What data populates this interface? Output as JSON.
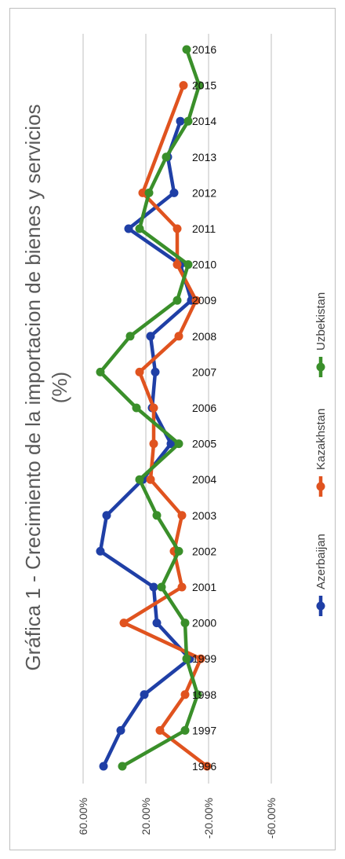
{
  "chart_data": {
    "type": "line",
    "title": "Gráfica 1 - Crecimiento de la importacion de bienes y servicios (%)",
    "title_lines": [
      "Gráfica 1 - Crecimiento de la importacion de bienes y servicios",
      "(%)"
    ],
    "xlabel": "",
    "ylabel": "",
    "ylim": [
      -80,
      80
    ],
    "y_ticks": [
      60,
      20,
      -20,
      -60
    ],
    "y_tick_labels": [
      "60.00%",
      "20.00%",
      "-20.00%",
      "-60.00%"
    ],
    "grid": true,
    "legend_position": "right",
    "categories": [
      "1996",
      "1997",
      "1998",
      "1999",
      "2000",
      "2001",
      "2002",
      "2003",
      "2004",
      "2005",
      "2006",
      "2007",
      "2008",
      "2009",
      "2010",
      "2011",
      "2012",
      "2013",
      "2014",
      "2015",
      "2016"
    ],
    "series": [
      {
        "name": "Azerbaijan",
        "color": "#1f3fa6",
        "values": [
          47,
          36,
          21,
          -8,
          13,
          15,
          49,
          45,
          22,
          4,
          16,
          14,
          17,
          -9,
          -2,
          31,
          2,
          6,
          -2,
          null,
          null
        ]
      },
      {
        "name": "Kazakhstan",
        "color": "#e0531f",
        "values": [
          -19,
          11,
          -5,
          -15,
          34,
          -3,
          2,
          -3,
          17,
          15,
          15,
          24,
          -1,
          -12,
          0,
          0,
          22,
          null,
          null,
          -4,
          null
        ]
      },
      {
        "name": "Uzbekistan",
        "color": "#3a8f2a",
        "values": [
          35,
          -5,
          -13,
          -6,
          -5,
          10,
          -1,
          13,
          24,
          -1,
          26,
          49,
          30,
          0,
          -7,
          24,
          18,
          7,
          -7,
          -14,
          -6
        ]
      }
    ]
  }
}
